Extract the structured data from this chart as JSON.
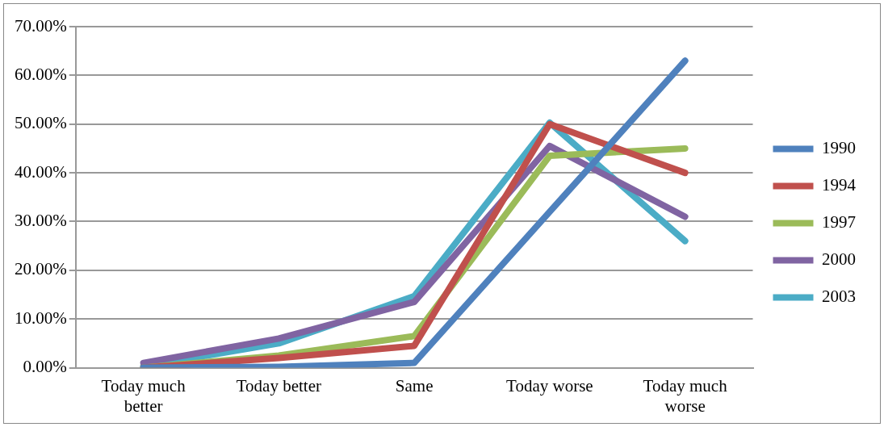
{
  "chart_data": {
    "type": "line",
    "categories": [
      "Today much better",
      "Today better",
      "Same",
      "Today worse",
      "Today much worse"
    ],
    "series": [
      {
        "name": "1990",
        "color": "#4f81bd",
        "values": [
          0,
          0.2,
          1,
          32,
          63
        ]
      },
      {
        "name": "1994",
        "color": "#c0504d",
        "values": [
          0,
          2,
          4.5,
          50,
          40
        ]
      },
      {
        "name": "1997",
        "color": "#9bbb59",
        "values": [
          0,
          2.5,
          6.5,
          43.5,
          45
        ]
      },
      {
        "name": "2000",
        "color": "#8064a2",
        "values": [
          1,
          6,
          13.5,
          45.5,
          31
        ]
      },
      {
        "name": "2003",
        "color": "#4bacc6",
        "values": [
          0.3,
          5,
          14.7,
          50.3,
          26
        ]
      }
    ],
    "ylim": [
      0,
      70
    ],
    "yticks": [
      {
        "value": 0,
        "label": "0.00%"
      },
      {
        "value": 10,
        "label": "10.00%"
      },
      {
        "value": 20,
        "label": "20.00%"
      },
      {
        "value": 30,
        "label": "30.00%"
      },
      {
        "value": 40,
        "label": "40.00%"
      },
      {
        "value": 50,
        "label": "50.00%"
      },
      {
        "value": 60,
        "label": "60.00%"
      },
      {
        "value": 70,
        "label": "70.00%"
      }
    ],
    "grid": "y",
    "legend": "right",
    "marker": "none",
    "line_style": "solid"
  }
}
